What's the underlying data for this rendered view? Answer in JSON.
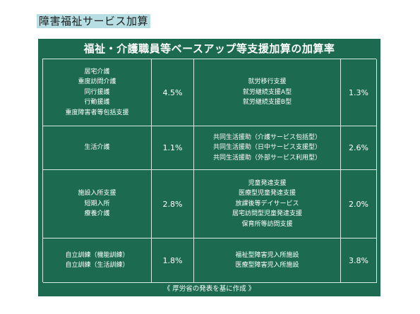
{
  "heading": "障害福祉サービス加算",
  "board": {
    "title": "福祉・介護職員等ベースアップ等支援加算の加算率",
    "rows": [
      {
        "left_services": [
          "居宅介護",
          "重度訪問介護",
          "同行援護",
          "行動援護",
          "重度障害者等包括支援"
        ],
        "left_rate": "4.5%",
        "right_services": [
          "就労移行支援",
          "就労継続支援A型",
          "就労継続支援B型"
        ],
        "right_rate": "1.3%"
      },
      {
        "left_services": [
          "生活介護"
        ],
        "left_rate": "1.1%",
        "right_services": [
          "共同生活援助（介護サービス包括型）",
          "共同生活援助（日中サービス支援型）",
          "共同生活援助（外部サービス利用型）"
        ],
        "right_rate": "2.6%"
      },
      {
        "left_services": [
          "施設入所支援",
          "短期入所",
          "療養介護"
        ],
        "left_rate": "2.8%",
        "right_services": [
          "児童発達支援",
          "医療型児童発達支援",
          "放課後等デイサービス",
          "居宅訪問型児童発達支援",
          "保育所等訪問支援"
        ],
        "right_rate": "2.0%"
      },
      {
        "left_services": [
          "自立訓練（機能訓練）",
          "自立訓練（生活訓練）"
        ],
        "left_rate": "1.8%",
        "right_services": [
          "福祉型障害児入所施設",
          "医療型障害児入所施設"
        ],
        "right_rate": "3.8%"
      }
    ],
    "footer": "《 厚労省の発表を基に作成 》"
  }
}
